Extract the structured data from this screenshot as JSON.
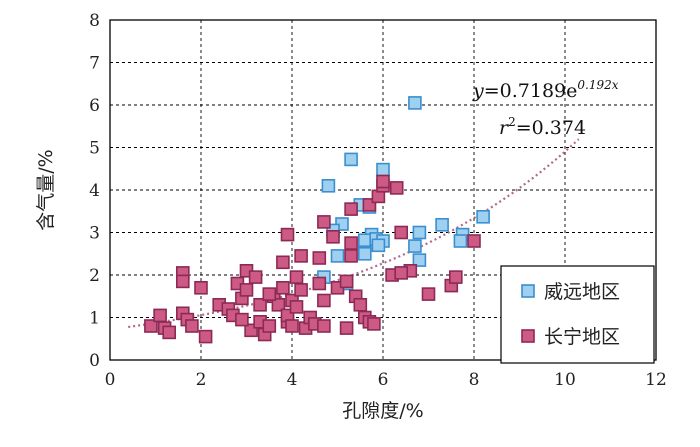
{
  "chart_data": {
    "type": "scatter",
    "xlabel": "孔隙度/%",
    "ylabel": "含气量/%",
    "xlim": [
      0,
      12
    ],
    "ylim": [
      0,
      8
    ],
    "xticks": [
      "0",
      "2",
      "4",
      "6",
      "8",
      "10",
      "12"
    ],
    "yticks": [
      "0",
      "1",
      "2",
      "3",
      "4",
      "5",
      "6",
      "7",
      "8"
    ],
    "grid": true,
    "legend_position": "bottom-right",
    "trendline": {
      "equation_y": "y",
      "equation_rhs": "=0.7189e",
      "equation_exp": "0.192x",
      "r2_lhs": "r",
      "r2_sup": "2",
      "r2_rhs": "=0.374",
      "a": 0.7189,
      "b": 0.192,
      "x_range": [
        0.4,
        10.3
      ],
      "color": "#b06a88"
    },
    "series": [
      {
        "name": "威远地区",
        "fill": "#9fd0f0",
        "stroke": "#3a8fd0",
        "points": [
          [
            6.7,
            6.05
          ],
          [
            5.3,
            4.72
          ],
          [
            6.0,
            4.48
          ],
          [
            4.8,
            4.1
          ],
          [
            5.5,
            3.65
          ],
          [
            5.7,
            3.6
          ],
          [
            5.1,
            3.2
          ],
          [
            4.9,
            3.05
          ],
          [
            5.75,
            2.95
          ],
          [
            5.6,
            2.82
          ],
          [
            5.85,
            2.85
          ],
          [
            6.0,
            2.8
          ],
          [
            5.9,
            2.7
          ],
          [
            6.8,
            3.0
          ],
          [
            7.3,
            3.18
          ],
          [
            7.75,
            2.95
          ],
          [
            8.2,
            3.37
          ],
          [
            7.7,
            2.8
          ],
          [
            6.7,
            2.68
          ],
          [
            5.6,
            2.5
          ],
          [
            6.8,
            2.35
          ],
          [
            4.7,
            1.95
          ],
          [
            5.2,
            1.8
          ],
          [
            5.0,
            2.45
          ]
        ]
      },
      {
        "name": "长宁地区",
        "fill": "#cc5a85",
        "stroke": "#8c2a55",
        "points": [
          [
            0.9,
            0.8
          ],
          [
            1.1,
            1.05
          ],
          [
            1.2,
            0.75
          ],
          [
            1.3,
            0.65
          ],
          [
            1.6,
            1.1
          ],
          [
            1.6,
            2.05
          ],
          [
            1.6,
            1.85
          ],
          [
            1.7,
            0.95
          ],
          [
            1.8,
            0.8
          ],
          [
            2.0,
            1.7
          ],
          [
            2.1,
            0.55
          ],
          [
            2.4,
            1.3
          ],
          [
            2.6,
            1.2
          ],
          [
            2.7,
            1.05
          ],
          [
            2.8,
            1.8
          ],
          [
            2.9,
            1.45
          ],
          [
            3.0,
            2.1
          ],
          [
            3.0,
            1.65
          ],
          [
            3.1,
            0.7
          ],
          [
            3.2,
            1.95
          ],
          [
            3.3,
            0.9
          ],
          [
            3.3,
            1.3
          ],
          [
            3.4,
            0.6
          ],
          [
            3.5,
            0.8
          ],
          [
            3.6,
            1.5
          ],
          [
            3.7,
            1.3
          ],
          [
            3.8,
            2.3
          ],
          [
            3.8,
            1.7
          ],
          [
            3.9,
            0.9
          ],
          [
            3.9,
            1.05
          ],
          [
            3.9,
            2.95
          ],
          [
            4.0,
            1.4
          ],
          [
            4.0,
            0.8
          ],
          [
            4.1,
            1.95
          ],
          [
            4.2,
            1.65
          ],
          [
            4.2,
            2.45
          ],
          [
            4.3,
            0.75
          ],
          [
            4.4,
            1.0
          ],
          [
            4.5,
            0.85
          ],
          [
            4.6,
            1.8
          ],
          [
            4.6,
            2.4
          ],
          [
            4.7,
            0.8
          ],
          [
            4.7,
            1.4
          ],
          [
            4.7,
            3.25
          ],
          [
            4.9,
            2.9
          ],
          [
            5.0,
            1.7
          ],
          [
            5.2,
            0.75
          ],
          [
            5.3,
            2.75
          ],
          [
            5.3,
            3.55
          ],
          [
            5.3,
            2.45
          ],
          [
            5.4,
            1.5
          ],
          [
            5.5,
            1.3
          ],
          [
            5.6,
            1.0
          ],
          [
            5.7,
            0.9
          ],
          [
            5.7,
            3.65
          ],
          [
            5.8,
            0.85
          ],
          [
            5.9,
            3.85
          ],
          [
            6.0,
            4.1
          ],
          [
            6.0,
            4.2
          ],
          [
            6.2,
            2.0
          ],
          [
            6.3,
            4.05
          ],
          [
            6.4,
            3.0
          ],
          [
            6.6,
            2.1
          ],
          [
            7.0,
            1.55
          ],
          [
            7.5,
            1.75
          ],
          [
            7.6,
            1.95
          ],
          [
            8.0,
            2.8
          ],
          [
            4.1,
            1.25
          ],
          [
            3.5,
            1.55
          ],
          [
            2.9,
            0.95
          ],
          [
            5.2,
            1.85
          ],
          [
            6.4,
            2.05
          ]
        ]
      }
    ]
  }
}
